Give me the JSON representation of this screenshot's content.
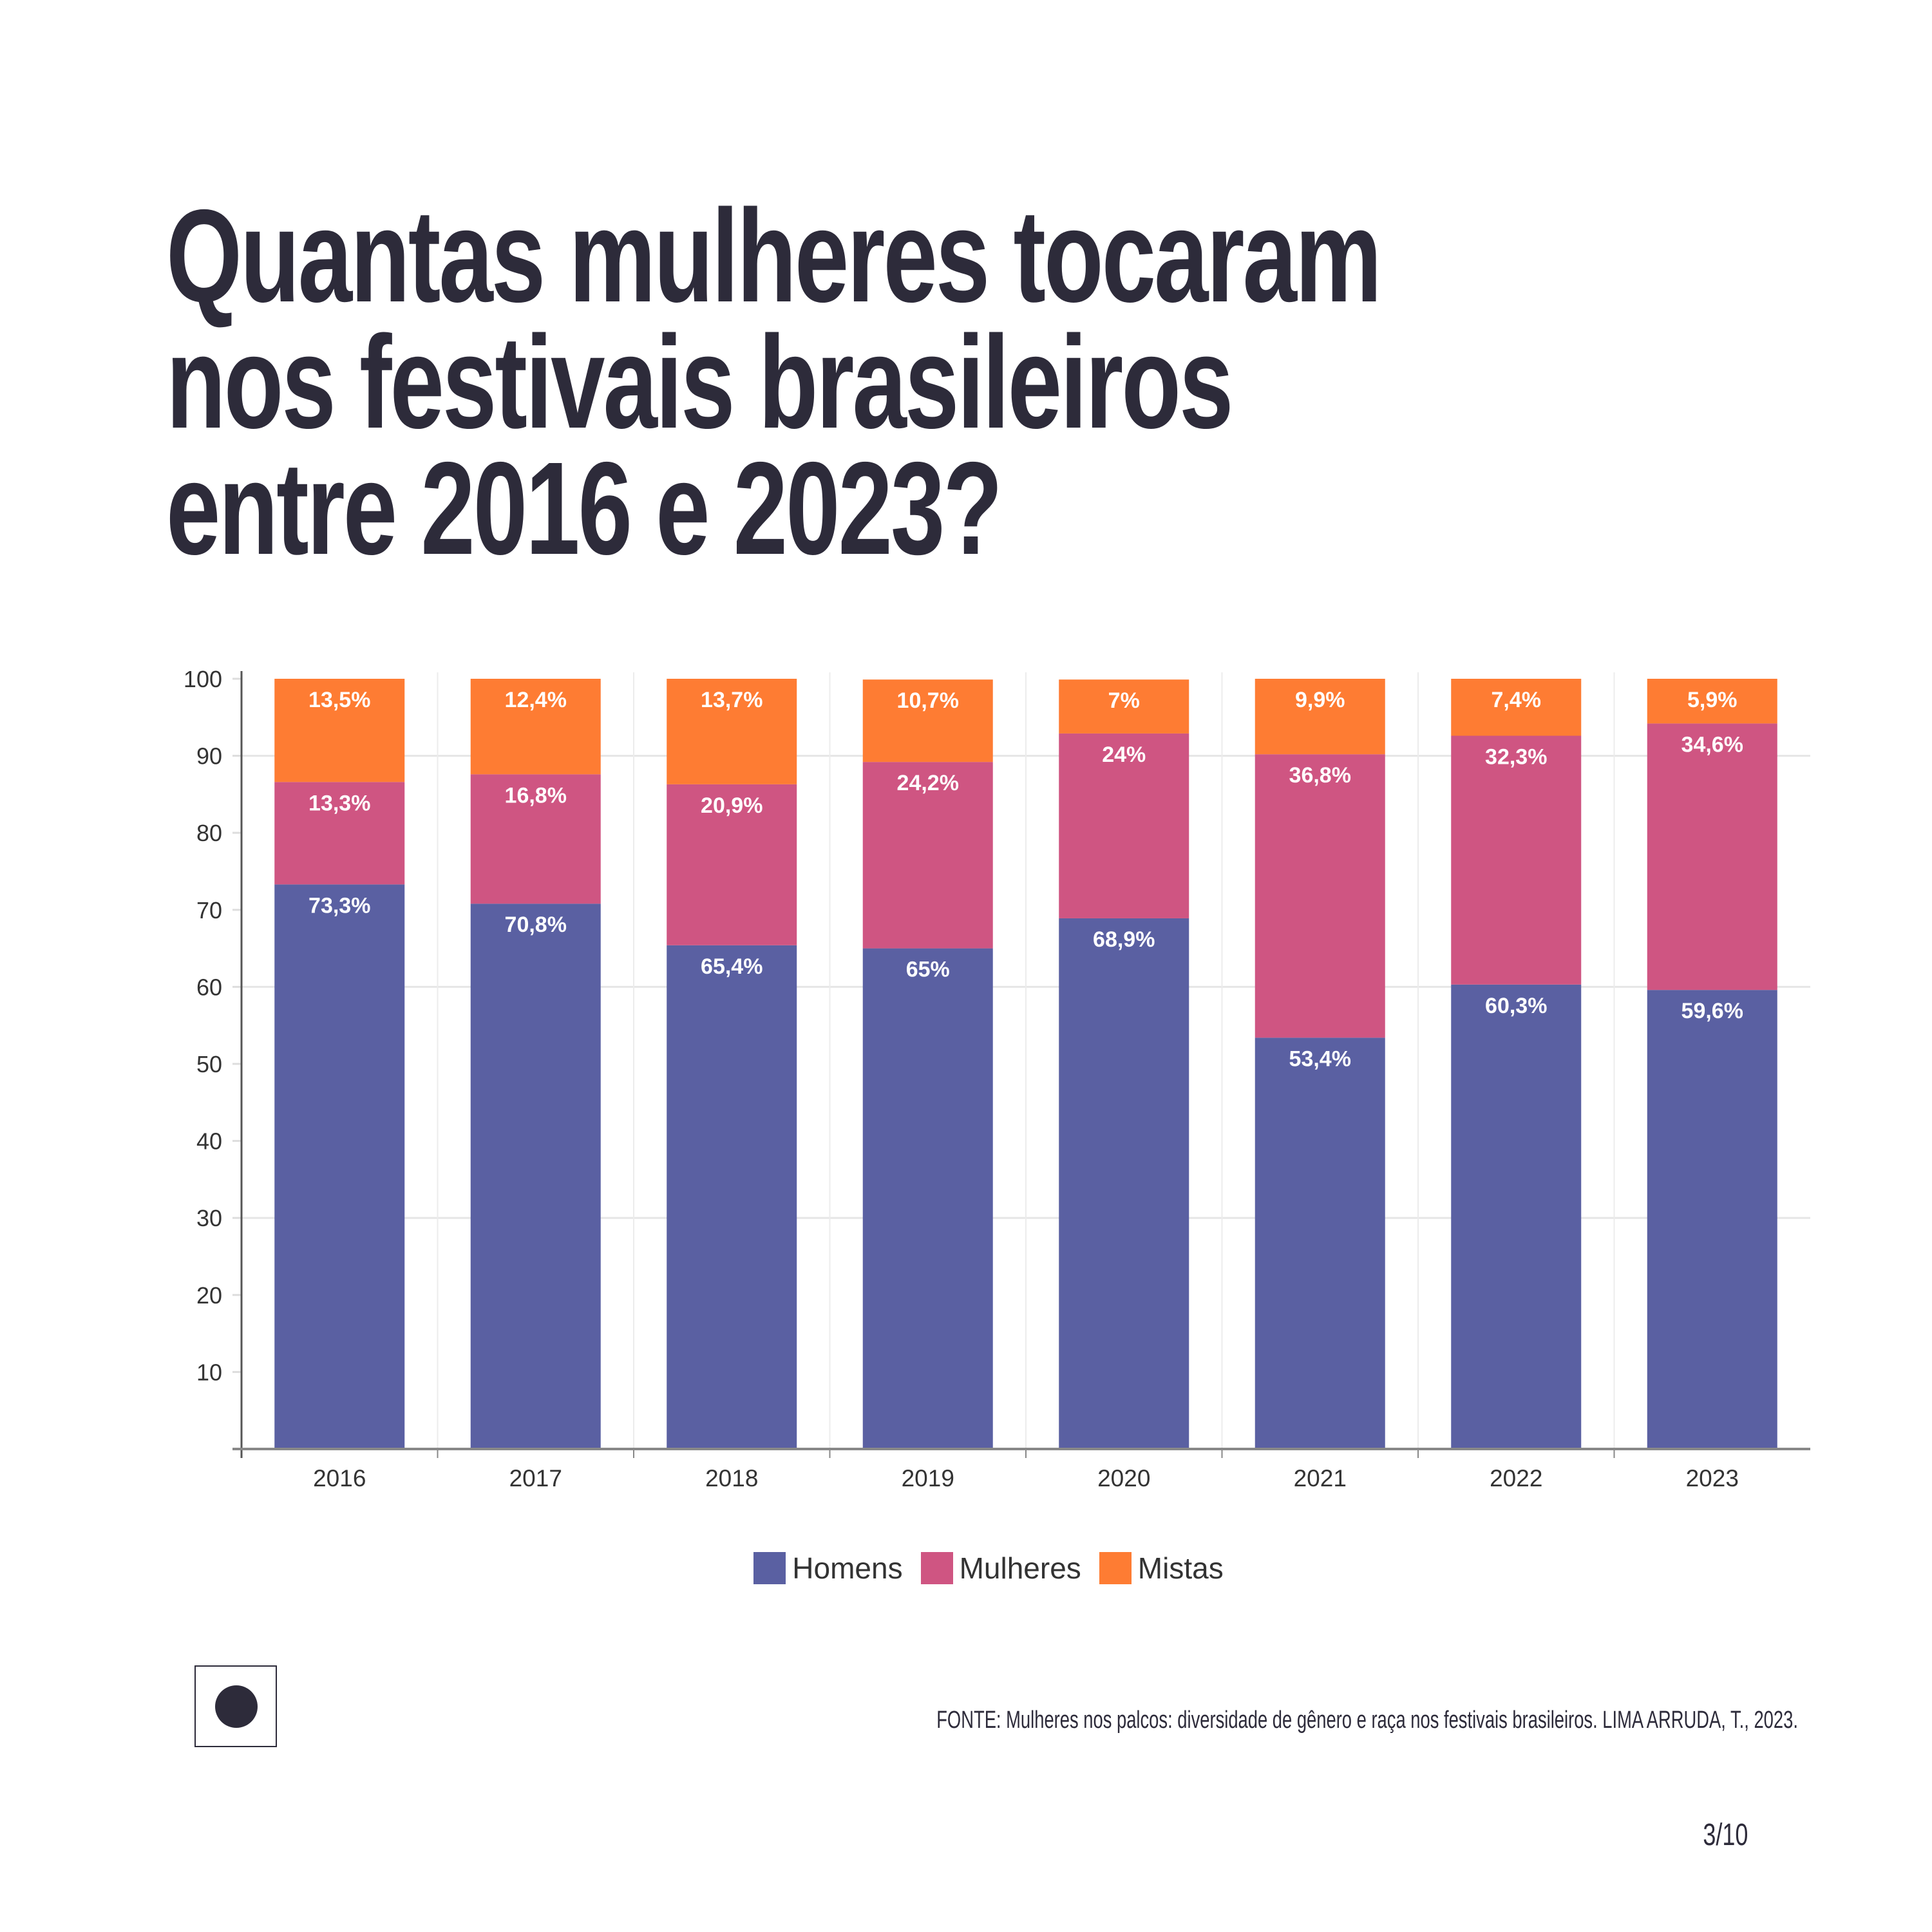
{
  "title": {
    "lines": [
      "Quantas mulheres tocaram",
      "nos festivais brasileiros",
      "entre 2016 e 2023?"
    ]
  },
  "chart_data": {
    "type": "bar",
    "stacked": true,
    "title": "Quantas mulheres tocaram nos festivais brasileiros entre 2016 e 2023?",
    "xlabel": "",
    "ylabel": "",
    "ylim": [
      0,
      100
    ],
    "yticks": [
      10,
      20,
      30,
      40,
      50,
      60,
      70,
      80,
      90,
      100
    ],
    "grid": "horizontal at 30, 60, 90; vertical category separators",
    "legend_position": "bottom-center",
    "categories": [
      "2016",
      "2017",
      "2018",
      "2019",
      "2020",
      "2021",
      "2022",
      "2023"
    ],
    "series": [
      {
        "name": "Homens",
        "color": "#5a60a2",
        "values": [
          73.3,
          70.8,
          65.4,
          65,
          68.9,
          53.4,
          60.3,
          59.6
        ],
        "labels": [
          "73,3%",
          "70,8%",
          "65,4%",
          "65%",
          "68,9%",
          "53,4%",
          "60,3%",
          "59,6%"
        ]
      },
      {
        "name": "Mulheres",
        "color": "#cf5582",
        "values": [
          13.3,
          16.8,
          20.9,
          24.2,
          24,
          36.8,
          32.3,
          34.6
        ],
        "labels": [
          "13,3%",
          "16,8%",
          "20,9%",
          "24,2%",
          "24%",
          "36,8%",
          "32,3%",
          "34,6%"
        ]
      },
      {
        "name": "Mistas",
        "color": "#fe7c33",
        "values": [
          13.5,
          12.4,
          13.7,
          10.7,
          7,
          9.9,
          7.4,
          5.9
        ],
        "labels": [
          "13,5%",
          "12,4%",
          "13,7%",
          "10,7%",
          "7%",
          "9,9%",
          "7,4%",
          "5,9%"
        ]
      }
    ]
  },
  "footer": {
    "source": "FONTE: Mulheres nos palcos: diversidade de gênero e raça nos festivais brasileiros. LIMA ARRUDA, T., 2023.",
    "page": "3/10"
  }
}
